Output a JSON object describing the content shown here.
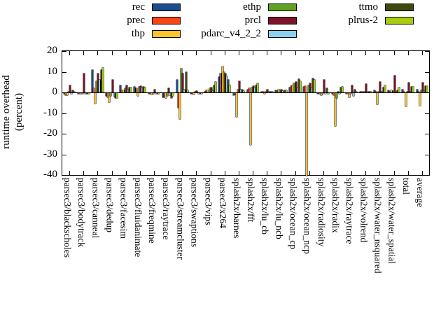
{
  "y_axis": {
    "label_line1": "runtime overhead",
    "label_line2": "(percent)"
  },
  "chart_data": {
    "type": "bar",
    "title": "",
    "xlabel": "",
    "ylabel": "runtime overhead (percent)",
    "ylim": [
      -40,
      20
    ],
    "yticks": [
      20,
      10,
      0,
      -10,
      -20,
      -30,
      -40
    ],
    "grid": false,
    "legend_position": "top",
    "categories": [
      "parsec3/blackscholes",
      "parsec3/bodytrack",
      "parsec3/canneal",
      "parsec3/dedup",
      "parsec3/facesim",
      "parsec3/fluidanimate",
      "parsec3/freqmine",
      "parsec3/raytrace",
      "parsec3/streamcluster",
      "parsec3/swaptions",
      "parsec3/vips",
      "parsec3/x264",
      "splash2x/barnes",
      "splash2x/fft",
      "splash2x/lu_cb",
      "splash2x/lu_ncb",
      "splash2x/ocean_cp",
      "splash2x/ocean_ncp",
      "splash2x/radiosity",
      "splash2x/radix",
      "splash2x/raytrace",
      "splash2x/volrend",
      "splash2x/water_nsquared",
      "splash2x/water_spatial",
      "total",
      "average"
    ],
    "series": [
      {
        "name": "rec",
        "color": "#1b4e8c",
        "values": [
          -0.5,
          -0.3,
          11,
          -1.5,
          3.3,
          2.8,
          -0.5,
          -2,
          6,
          -0.3,
          0.5,
          7.3,
          -1,
          1.5,
          0.3,
          1,
          2.5,
          2.6,
          -0.5,
          -0.5,
          -0.5,
          0.3,
          1,
          1,
          1.3,
          1.4
        ]
      },
      {
        "name": "prec",
        "color": "#fa4616",
        "values": [
          -1,
          -0.3,
          2,
          -2,
          1,
          2.2,
          -0.5,
          -2,
          -7,
          -0.3,
          1,
          9,
          -0.7,
          2,
          0.2,
          0.7,
          3,
          3,
          -0.4,
          -1,
          -0.5,
          0.5,
          0.5,
          0.5,
          0.3,
          0.4
        ]
      },
      {
        "name": "thp",
        "color": "#fcc32c",
        "values": [
          -1,
          -0.5,
          -5,
          -4.5,
          1,
          -1.5,
          -0.7,
          -2.5,
          -12.5,
          -0.7,
          1,
          12.5,
          -11.4,
          -25,
          -0.3,
          1.2,
          3.5,
          -40,
          -1,
          -16,
          -2,
          0.5,
          -5.4,
          1,
          -6.3,
          -6
        ]
      },
      {
        "name": "ethp",
        "color": "#61a321",
        "values": [
          0.5,
          -0.3,
          5.5,
          -1.5,
          2,
          2.8,
          -0.5,
          -1.5,
          11.4,
          0.3,
          2,
          10,
          1.2,
          2.5,
          0.3,
          1,
          4.5,
          3.4,
          -0.5,
          -2.5,
          -0.5,
          0.5,
          0.5,
          0.8,
          0.5,
          1
        ]
      },
      {
        "name": "prcl",
        "color": "#7d1228",
        "values": [
          3.5,
          9,
          9,
          6,
          3.5,
          3,
          1.5,
          2,
          9,
          0.8,
          2.5,
          9,
          5.5,
          3,
          1.5,
          1.5,
          5,
          4.4,
          6,
          0.5,
          3.3,
          4,
          5.2,
          8,
          4.6,
          4.8
        ]
      },
      {
        "name": "pdarc_v4_2_2",
        "color": "#8cd0f0",
        "values": [
          -0.5,
          -0.3,
          6,
          -1.5,
          1.5,
          2.5,
          -0.5,
          -1,
          1.5,
          -0.3,
          0.8,
          7.8,
          1.5,
          2.5,
          0.2,
          0.7,
          2,
          2,
          -0.4,
          -0.5,
          -1.5,
          0.3,
          0.5,
          0.5,
          0.5,
          0.8
        ]
      },
      {
        "name": "ttmo",
        "color": "#3f4a0e",
        "values": [
          1,
          -0.3,
          11,
          -2.5,
          2.5,
          2.8,
          -0.5,
          -2.5,
          10,
          -0.3,
          3.5,
          6,
          1.2,
          3.5,
          0.3,
          1,
          6.5,
          6.8,
          2,
          2.5,
          1.5,
          0.5,
          2.5,
          1,
          2.8,
          2.9
        ]
      },
      {
        "name": "plrus-2",
        "color": "#a8cc0e",
        "values": [
          0.5,
          -0.3,
          12,
          -2.5,
          2.5,
          2.5,
          -0.5,
          -1.5,
          1,
          -0.3,
          5,
          3.3,
          0.8,
          4.5,
          0.3,
          1,
          5.5,
          6.1,
          -0.3,
          2.7,
          0.5,
          0.5,
          3.4,
          2.5,
          2.8,
          2.9
        ]
      }
    ]
  }
}
